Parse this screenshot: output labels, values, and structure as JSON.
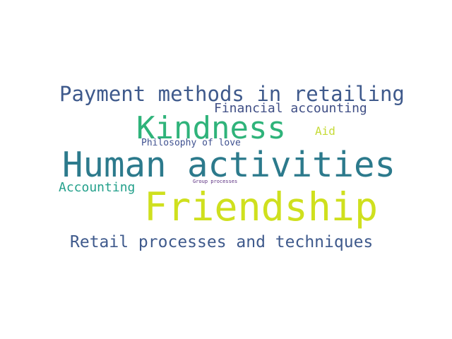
{
  "words": {
    "payment": {
      "text": "Payment methods in retailing",
      "color": "#3f5a8c"
    },
    "financial": {
      "text": "Financial accounting",
      "color": "#3f4e85"
    },
    "kindness": {
      "text": "Kindness",
      "color": "#2fb37a"
    },
    "aid": {
      "text": "Aid",
      "color": "#c6db37"
    },
    "philosophy": {
      "text": "Philosophy of love",
      "color": "#3f5190"
    },
    "human": {
      "text": "Human activities",
      "color": "#2c7a8c"
    },
    "accounting": {
      "text": "Accounting",
      "color": "#23a08b"
    },
    "group": {
      "text": "Group processes",
      "color": "#5b2f80"
    },
    "friendship": {
      "text": "Friendship",
      "color": "#cfe01e"
    },
    "retail": {
      "text": "Retail processes and techniques",
      "color": "#3f5a8c"
    }
  }
}
